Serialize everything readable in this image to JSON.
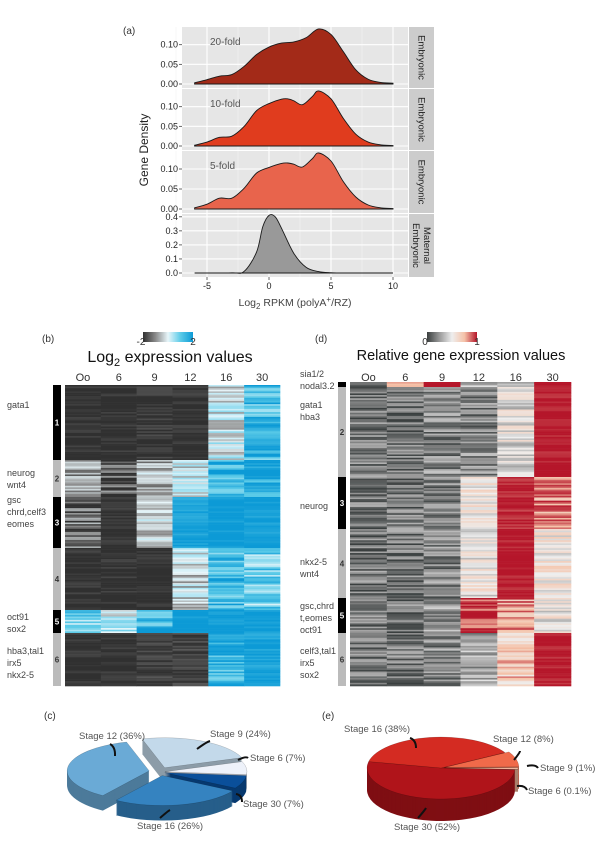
{
  "panel_labels": {
    "a": "(a)",
    "b": "(b)",
    "c": "(c)",
    "d": "(d)",
    "e": "(e)"
  },
  "chart_data": [
    {
      "id": "a",
      "type": "area",
      "xlabel": "Log2 RPKM (polyA+/RZ)",
      "xlabel_parts": {
        "pre": "Log",
        "sub": "2",
        "mid": " RPKM (polyA",
        "sup": "+",
        "post": "/RZ)"
      },
      "ylabel": "Gene Density",
      "x_ticks": [
        -5,
        0,
        5,
        10
      ],
      "xlim": [
        -7,
        11.2
      ],
      "grid": true,
      "facets": [
        {
          "strip": [
            "Embryonic"
          ],
          "annotation": "20-fold",
          "color": "#a32a18",
          "ylim": [
            0,
            0.145
          ],
          "y_ticks": [
            "0.00",
            "0.05",
            "0.10"
          ],
          "points": [
            [
              -6,
              0.003
            ],
            [
              -5,
              0.011
            ],
            [
              -4,
              0.02
            ],
            [
              -3,
              0.024
            ],
            [
              -2,
              0.045
            ],
            [
              -1,
              0.075
            ],
            [
              0,
              0.094
            ],
            [
              1,
              0.104
            ],
            [
              2,
              0.107
            ],
            [
              3,
              0.118
            ],
            [
              4,
              0.14
            ],
            [
              5,
              0.126
            ],
            [
              6,
              0.082
            ],
            [
              7,
              0.036
            ],
            [
              8,
              0.012
            ],
            [
              9,
              0.004
            ],
            [
              10,
              0.002
            ]
          ]
        },
        {
          "strip": [
            "Embryonic"
          ],
          "annotation": "10-fold",
          "color": "#e03c1e",
          "ylim": [
            0,
            0.145
          ],
          "y_ticks": [
            "0.00",
            "0.05",
            "0.10"
          ],
          "points": [
            [
              -6,
              0.002
            ],
            [
              -5,
              0.01
            ],
            [
              -4,
              0.022
            ],
            [
              -3,
              0.025
            ],
            [
              -2,
              0.05
            ],
            [
              -1,
              0.09
            ],
            [
              0,
              0.108
            ],
            [
              1,
              0.119
            ],
            [
              1.5,
              0.12
            ],
            [
              2,
              0.115
            ],
            [
              2.7,
              0.105
            ],
            [
              3.5,
              0.126
            ],
            [
              4,
              0.14
            ],
            [
              5,
              0.12
            ],
            [
              6,
              0.07
            ],
            [
              7,
              0.03
            ],
            [
              8,
              0.01
            ],
            [
              9,
              0.003
            ],
            [
              10,
              0.001
            ]
          ]
        },
        {
          "strip": [
            "Embryonic"
          ],
          "annotation": "5-fold",
          "color": "#e8644c",
          "ylim": [
            0,
            0.145
          ],
          "y_ticks": [
            "0.00",
            "0.05",
            "0.10"
          ],
          "points": [
            [
              -6,
              0.003
            ],
            [
              -5,
              0.012
            ],
            [
              -4,
              0.027
            ],
            [
              -3,
              0.027
            ],
            [
              -2,
              0.052
            ],
            [
              -1,
              0.09
            ],
            [
              0,
              0.104
            ],
            [
              1,
              0.114
            ],
            [
              1.5,
              0.115
            ],
            [
              2,
              0.112
            ],
            [
              2.7,
              0.105
            ],
            [
              3.5,
              0.126
            ],
            [
              4,
              0.14
            ],
            [
              5,
              0.12
            ],
            [
              6,
              0.068
            ],
            [
              7,
              0.03
            ],
            [
              8,
              0.01
            ],
            [
              9,
              0.003
            ],
            [
              10,
              0.001
            ]
          ]
        },
        {
          "strip": [
            "Maternal",
            "Embryonic"
          ],
          "annotation": "",
          "color": "#999999",
          "ylim": [
            0,
            0.42
          ],
          "y_ticks": [
            "0.0",
            "0.1",
            "0.2",
            "0.3",
            "0.4"
          ],
          "points": [
            [
              -6,
              0
            ],
            [
              -3,
              0.001
            ],
            [
              -2,
              0.012
            ],
            [
              -1,
              0.15
            ],
            [
              -0.5,
              0.33
            ],
            [
              0,
              0.41
            ],
            [
              0.5,
              0.4
            ],
            [
              1,
              0.32
            ],
            [
              2,
              0.14
            ],
            [
              3,
              0.04
            ],
            [
              4,
              0.01
            ],
            [
              5,
              0.002
            ],
            [
              6,
              0
            ],
            [
              10,
              0
            ]
          ]
        }
      ]
    },
    {
      "id": "b",
      "type": "heatmap",
      "title_parts": {
        "pre": "Log",
        "sub": "2",
        "post": " expression values"
      },
      "colorbar": {
        "min_label": "-2",
        "max_label": "2",
        "min": -2,
        "max": 2,
        "colors": [
          "#303030",
          "#8a8a8a",
          "#e8f6fa",
          "#5ccbe8",
          "#0c9ad6"
        ]
      },
      "columns": [
        "Oo",
        "6",
        "9",
        "12",
        "16",
        "30"
      ],
      "clusters": [
        {
          "id": "1",
          "dark": true,
          "genes": [
            "gata1"
          ],
          "values": [
            -2,
            -2,
            -1.9,
            -2,
            -0.1,
            1.3
          ]
        },
        {
          "id": "2",
          "dark": false,
          "genes": [
            "neurog",
            "wnt4"
          ],
          "values": [
            -0.9,
            -1.5,
            -0.6,
            -0.1,
            1.5,
            1.7
          ]
        },
        {
          "id": "3",
          "dark": true,
          "genes": [
            "gsc",
            "chrd,celf3",
            "eomes"
          ],
          "values": [
            -1.3,
            -2,
            -0.4,
            1.8,
            2,
            1.9
          ]
        },
        {
          "id": "4",
          "dark": false,
          "genes": [],
          "values": [
            -2,
            -2,
            -2,
            -0.3,
            1.4,
            0.9
          ]
        },
        {
          "id": "5",
          "dark": true,
          "genes": [
            "oct91",
            "sox2"
          ],
          "values": [
            1.0,
            0.2,
            1.5,
            2,
            2,
            2
          ]
        },
        {
          "id": "6",
          "dark": false,
          "genes": [
            "hba3,tal1",
            "irx5",
            "nkx2-5"
          ],
          "values": [
            -2,
            -2,
            -1.8,
            -1.8,
            1.5,
            1.8
          ]
        }
      ]
    },
    {
      "id": "d",
      "type": "heatmap",
      "title": "Relative gene expression values",
      "colorbar": {
        "min_label": "0",
        "max_label": "1",
        "min": 0,
        "max": 1,
        "colors": [
          "#3a3f3f",
          "#9a9a9a",
          "#eeeeee",
          "#f5c2a8",
          "#b5162a"
        ]
      },
      "columns": [
        "Oo",
        "6",
        "9",
        "12",
        "16",
        "30"
      ],
      "clusters": [
        {
          "id": "1",
          "dark": true,
          "genes": [
            "sia1/2",
            "nodal3.2"
          ],
          "values": [
            0.2,
            0.8,
            1,
            0.35,
            0.35,
            1
          ]
        },
        {
          "id": "2",
          "dark": false,
          "genes": [
            "gata1",
            "hba3"
          ],
          "values": [
            0.15,
            0.15,
            0.2,
            0.2,
            0.45,
            1
          ]
        },
        {
          "id": "3",
          "dark": true,
          "genes": [
            "neurog"
          ],
          "values": [
            0.15,
            0.15,
            0.2,
            0.5,
            0.97,
            0.82
          ]
        },
        {
          "id": "4",
          "dark": false,
          "genes": [
            "nkx2-5",
            "wnt4"
          ],
          "values": [
            0.15,
            0.15,
            0.2,
            0.5,
            1,
            0.55
          ]
        },
        {
          "id": "5",
          "dark": true,
          "genes": [
            "gsc,chrd",
            "t,eomes",
            "oct91"
          ],
          "values": [
            0.15,
            0.15,
            0.25,
            0.95,
            0.82,
            0.5
          ]
        },
        {
          "id": "6",
          "dark": false,
          "genes": [
            "celf3,tal1",
            "irx5",
            "sox2"
          ],
          "values": [
            0.15,
            0.15,
            0.2,
            0.3,
            0.68,
            1
          ]
        }
      ]
    },
    {
      "id": "c",
      "type": "pie",
      "slices": [
        {
          "label": "Stage 9 (24%)",
          "value": 24,
          "color": "#c3d9ea"
        },
        {
          "label": "Stage 6 (7%)",
          "value": 7,
          "color": "#eef2fa"
        },
        {
          "label": "Stage 30 (7%)",
          "value": 7,
          "color": "#0a4f9a"
        },
        {
          "label": "Stage 16 (26%)",
          "value": 26,
          "color": "#3583c0"
        },
        {
          "label": "Stage 12 (36%)",
          "value": 36,
          "color": "#6aaad6"
        }
      ]
    },
    {
      "id": "e",
      "type": "pie",
      "slices": [
        {
          "label": "Stage 12 (8%)",
          "value": 8,
          "color": "#f06a4a"
        },
        {
          "label": "Stage 9 (1%)",
          "value": 1,
          "color": "#f2b49a"
        },
        {
          "label": "Stage 6 (0.1%)",
          "value": 0.1,
          "color": "#d8a58a"
        },
        {
          "label": "Stage 30 (52%)",
          "value": 52,
          "color": "#b0141a"
        },
        {
          "label": "Stage 16 (38%)",
          "value": 38,
          "color": "#d42b22"
        }
      ]
    }
  ]
}
